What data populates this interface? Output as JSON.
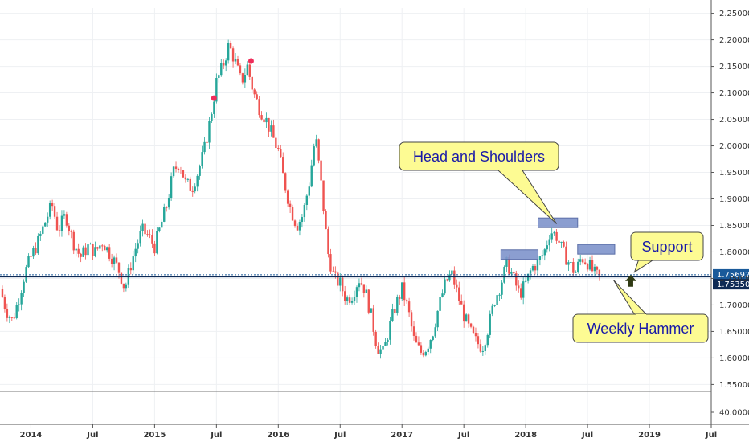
{
  "chart_data": {
    "type": "candlestick",
    "title": "",
    "xlabel": "",
    "ylabel": "",
    "ylim": [
      1.54,
      2.26
    ],
    "y_ticks": [
      "2.25000",
      "2.20000",
      "2.15000",
      "2.10000",
      "2.05000",
      "2.00000",
      "1.95000",
      "1.90000",
      "1.85000",
      "1.80000",
      "1.75000",
      "1.70000",
      "1.65000",
      "1.60000",
      "1.55000"
    ],
    "sub_pane_tick": "40.0000",
    "x_ticks": [
      "2014",
      "Jul",
      "2015",
      "Jul",
      "2016",
      "Jul",
      "2017",
      "Jul",
      "2018",
      "Jul",
      "2019",
      "Jul"
    ],
    "x_tick_dates": [
      2014.0,
      2014.5,
      2015.0,
      2015.5,
      2016.0,
      2016.5,
      2017.0,
      2017.5,
      2018.0,
      2018.5,
      2019.0,
      2019.5
    ],
    "xlim": [
      2013.75,
      2019.5
    ],
    "close_path": [
      [
        2013.75,
        1.73
      ],
      [
        2013.8,
        1.69
      ],
      [
        2013.85,
        1.67
      ],
      [
        2013.9,
        1.71
      ],
      [
        2013.95,
        1.76
      ],
      [
        2014.0,
        1.79
      ],
      [
        2014.06,
        1.82
      ],
      [
        2014.12,
        1.86
      ],
      [
        2014.17,
        1.89
      ],
      [
        2014.22,
        1.84
      ],
      [
        2014.28,
        1.87
      ],
      [
        2014.34,
        1.82
      ],
      [
        2014.4,
        1.79
      ],
      [
        2014.46,
        1.81
      ],
      [
        2014.52,
        1.8
      ],
      [
        2014.58,
        1.82
      ],
      [
        2014.63,
        1.8
      ],
      [
        2014.68,
        1.78
      ],
      [
        2014.72,
        1.76
      ],
      [
        2014.76,
        1.73
      ],
      [
        2014.8,
        1.77
      ],
      [
        2014.85,
        1.81
      ],
      [
        2014.9,
        1.84
      ],
      [
        2014.95,
        1.83
      ],
      [
        2015.0,
        1.81
      ],
      [
        2015.05,
        1.85
      ],
      [
        2015.1,
        1.89
      ],
      [
        2015.15,
        1.95
      ],
      [
        2015.2,
        1.97
      ],
      [
        2015.25,
        1.93
      ],
      [
        2015.3,
        1.92
      ],
      [
        2015.35,
        1.95
      ],
      [
        2015.4,
        1.99
      ],
      [
        2015.45,
        2.05
      ],
      [
        2015.5,
        2.12
      ],
      [
        2015.55,
        2.15
      ],
      [
        2015.6,
        2.19
      ],
      [
        2015.65,
        2.16
      ],
      [
        2015.7,
        2.12
      ],
      [
        2015.75,
        2.15
      ],
      [
        2015.8,
        2.1
      ],
      [
        2015.85,
        2.07
      ],
      [
        2015.9,
        2.05
      ],
      [
        2015.95,
        2.02
      ],
      [
        2016.0,
        1.99
      ],
      [
        2016.05,
        1.93
      ],
      [
        2016.1,
        1.88
      ],
      [
        2016.15,
        1.85
      ],
      [
        2016.2,
        1.87
      ],
      [
        2016.25,
        1.93
      ],
      [
        2016.3,
        2.02
      ],
      [
        2016.35,
        1.92
      ],
      [
        2016.4,
        1.8
      ],
      [
        2016.45,
        1.75
      ],
      [
        2016.5,
        1.74
      ],
      [
        2016.55,
        1.71
      ],
      [
        2016.6,
        1.72
      ],
      [
        2016.65,
        1.75
      ],
      [
        2016.7,
        1.73
      ],
      [
        2016.75,
        1.68
      ],
      [
        2016.8,
        1.62
      ],
      [
        2016.85,
        1.61
      ],
      [
        2016.9,
        1.66
      ],
      [
        2016.95,
        1.7
      ],
      [
        2017.0,
        1.73
      ],
      [
        2017.05,
        1.69
      ],
      [
        2017.1,
        1.63
      ],
      [
        2017.15,
        1.61
      ],
      [
        2017.2,
        1.62
      ],
      [
        2017.25,
        1.65
      ],
      [
        2017.3,
        1.7
      ],
      [
        2017.35,
        1.74
      ],
      [
        2017.4,
        1.76
      ],
      [
        2017.45,
        1.72
      ],
      [
        2017.5,
        1.68
      ],
      [
        2017.55,
        1.65
      ],
      [
        2017.6,
        1.63
      ],
      [
        2017.65,
        1.62
      ],
      [
        2017.7,
        1.66
      ],
      [
        2017.75,
        1.71
      ],
      [
        2017.8,
        1.74
      ],
      [
        2017.85,
        1.78
      ],
      [
        2017.9,
        1.75
      ],
      [
        2017.95,
        1.72
      ],
      [
        2018.0,
        1.74
      ],
      [
        2018.05,
        1.77
      ],
      [
        2018.1,
        1.78
      ],
      [
        2018.15,
        1.8
      ],
      [
        2018.2,
        1.84
      ],
      [
        2018.25,
        1.83
      ],
      [
        2018.3,
        1.8
      ],
      [
        2018.35,
        1.78
      ],
      [
        2018.4,
        1.76
      ],
      [
        2018.45,
        1.79
      ],
      [
        2018.5,
        1.78
      ],
      [
        2018.55,
        1.76
      ],
      [
        2018.6,
        1.75
      ]
    ],
    "horizontal_lines": [
      {
        "value": 1.7569,
        "label": "1.75692",
        "color": "#1a5a9a"
      },
      {
        "value": 1.7535,
        "label": "1.75350",
        "color": "#0e2a55"
      }
    ],
    "pattern_boxes": [
      {
        "x0": 2017.8,
        "x1": 2018.1,
        "y": 1.795
      },
      {
        "x0": 2018.1,
        "x1": 2018.42,
        "y": 1.855
      },
      {
        "x0": 2018.42,
        "x1": 2018.72,
        "y": 1.805
      }
    ],
    "markers": [
      {
        "x": 2015.48,
        "y": 2.09
      },
      {
        "x": 2015.78,
        "y": 2.16
      }
    ],
    "annotations": [
      {
        "text": "Head and Shoulders",
        "target": [
          2018.25,
          1.853
        ]
      },
      {
        "text": "Support",
        "target": [
          2018.88,
          1.762
        ]
      },
      {
        "text": "Weekly Hammer",
        "target": [
          2018.71,
          1.747
        ]
      }
    ],
    "colors": {
      "up": "#26a69a",
      "down": "#ef5350",
      "box": "#7f94cc"
    }
  }
}
